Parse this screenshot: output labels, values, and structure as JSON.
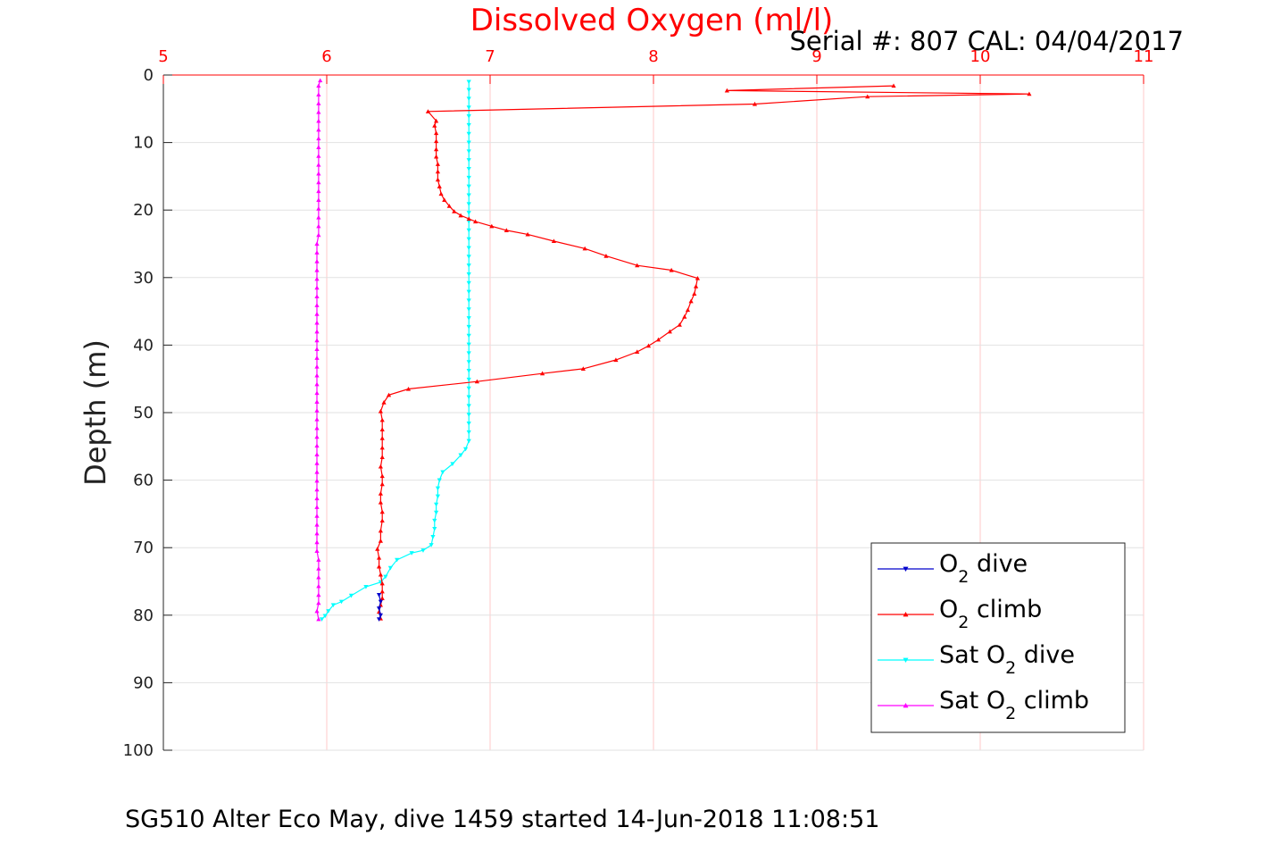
{
  "chart_data": {
    "type": "line",
    "title": "Dissolved Oxygen (ml/l)",
    "subtitle": "Serial #: 807  CAL: 04/04/2017",
    "footer": "SG510 Alter Eco May, dive 1459 started 14-Jun-2018 11:08:51",
    "ylabel": "Depth (m)",
    "xlabel": "",
    "xlim": [
      5,
      11
    ],
    "ylim": [
      0,
      100
    ],
    "y_reversed": true,
    "x_axis_position": "top",
    "xticks": [
      5,
      6,
      7,
      8,
      9,
      10,
      11
    ],
    "yticks": [
      0,
      10,
      20,
      30,
      40,
      50,
      60,
      70,
      80,
      90,
      100
    ],
    "grid": true,
    "legend_position": "lower-right",
    "series": [
      {
        "name": "O2 dive",
        "legend_main": "O",
        "legend_sub": "2",
        "legend_tail": " dive",
        "color": "#0000cc",
        "marker": "triangle-down",
        "points": [
          [
            6.32,
            77.0
          ],
          [
            6.33,
            78.0
          ],
          [
            6.32,
            79.0
          ],
          [
            6.33,
            80.0
          ],
          [
            6.32,
            80.6
          ]
        ]
      },
      {
        "name": "O2 climb",
        "legend_main": "O",
        "legend_sub": "2",
        "legend_tail": " climb",
        "color": "#ff0000",
        "marker": "triangle-up",
        "points": [
          [
            6.33,
            80.5
          ],
          [
            6.32,
            79.5
          ],
          [
            6.33,
            78.5
          ],
          [
            6.34,
            77.5
          ],
          [
            6.34,
            76.5
          ],
          [
            6.34,
            75.3
          ],
          [
            6.33,
            74.0
          ],
          [
            6.32,
            72.8
          ],
          [
            6.32,
            71.5
          ],
          [
            6.31,
            70.2
          ],
          [
            6.33,
            69.0
          ],
          [
            6.33,
            67.5
          ],
          [
            6.34,
            66.0
          ],
          [
            6.34,
            64.7
          ],
          [
            6.33,
            63.3
          ],
          [
            6.33,
            62.0
          ],
          [
            6.34,
            60.6
          ],
          [
            6.34,
            59.4
          ],
          [
            6.33,
            58.0
          ],
          [
            6.34,
            56.6
          ],
          [
            6.34,
            55.2
          ],
          [
            6.34,
            53.8
          ],
          [
            6.34,
            52.5
          ],
          [
            6.34,
            51.1
          ],
          [
            6.33,
            49.8
          ],
          [
            6.35,
            48.5
          ],
          [
            6.38,
            47.4
          ],
          [
            6.5,
            46.5
          ],
          [
            6.92,
            45.4
          ],
          [
            7.32,
            44.2
          ],
          [
            7.57,
            43.5
          ],
          [
            7.77,
            42.2
          ],
          [
            7.9,
            41.0
          ],
          [
            7.97,
            40.1
          ],
          [
            8.03,
            39.2
          ],
          [
            8.1,
            38.0
          ],
          [
            8.16,
            37.0
          ],
          [
            8.19,
            35.8
          ],
          [
            8.21,
            34.8
          ],
          [
            8.23,
            33.5
          ],
          [
            8.25,
            32.4
          ],
          [
            8.26,
            31.3
          ],
          [
            8.27,
            30.1
          ],
          [
            8.11,
            28.9
          ],
          [
            7.9,
            28.2
          ],
          [
            7.71,
            26.8
          ],
          [
            7.58,
            25.7
          ],
          [
            7.39,
            24.6
          ],
          [
            7.23,
            23.6
          ],
          [
            7.1,
            23.0
          ],
          [
            7.01,
            22.4
          ],
          [
            6.91,
            21.7
          ],
          [
            6.87,
            21.3
          ],
          [
            6.82,
            20.8
          ],
          [
            6.78,
            20.2
          ],
          [
            6.75,
            19.4
          ],
          [
            6.72,
            18.5
          ],
          [
            6.7,
            17.6
          ],
          [
            6.69,
            16.5
          ],
          [
            6.68,
            15.5
          ],
          [
            6.68,
            14.3
          ],
          [
            6.68,
            13.2
          ],
          [
            6.67,
            12.1
          ],
          [
            6.67,
            11.0
          ],
          [
            6.67,
            9.8
          ],
          [
            6.67,
            8.6
          ],
          [
            6.66,
            7.5
          ],
          [
            6.67,
            6.8
          ],
          [
            6.62,
            5.4
          ],
          [
            8.62,
            4.3
          ],
          [
            9.31,
            3.2
          ],
          [
            10.3,
            2.8
          ],
          [
            8.45,
            2.3
          ],
          [
            9.47,
            1.6
          ]
        ]
      },
      {
        "name": "Sat O2 dive",
        "legend_main": "Sat O",
        "legend_sub": "2",
        "legend_tail": " dive",
        "color": "#00ffff",
        "marker": "triangle-down",
        "points": [
          [
            6.87,
            1.0
          ],
          [
            6.87,
            2.2
          ],
          [
            6.87,
            3.5
          ],
          [
            6.87,
            4.8
          ],
          [
            6.87,
            6.1
          ],
          [
            6.87,
            7.4
          ],
          [
            6.87,
            8.7
          ],
          [
            6.87,
            10.0
          ],
          [
            6.87,
            11.3
          ],
          [
            6.87,
            12.6
          ],
          [
            6.87,
            13.9
          ],
          [
            6.87,
            15.2
          ],
          [
            6.87,
            16.5
          ],
          [
            6.87,
            17.8
          ],
          [
            6.87,
            19.1
          ],
          [
            6.87,
            20.4
          ],
          [
            6.87,
            21.7
          ],
          [
            6.87,
            23.0
          ],
          [
            6.87,
            24.3
          ],
          [
            6.87,
            25.6
          ],
          [
            6.87,
            26.9
          ],
          [
            6.87,
            28.2
          ],
          [
            6.87,
            29.5
          ],
          [
            6.87,
            30.8
          ],
          [
            6.87,
            32.1
          ],
          [
            6.87,
            33.4
          ],
          [
            6.87,
            34.7
          ],
          [
            6.87,
            36.0
          ],
          [
            6.87,
            37.3
          ],
          [
            6.87,
            38.6
          ],
          [
            6.87,
            39.9
          ],
          [
            6.87,
            41.2
          ],
          [
            6.87,
            42.5
          ],
          [
            6.87,
            43.8
          ],
          [
            6.87,
            45.1
          ],
          [
            6.87,
            46.4
          ],
          [
            6.87,
            47.7
          ],
          [
            6.87,
            49.0
          ],
          [
            6.87,
            50.3
          ],
          [
            6.87,
            51.6
          ],
          [
            6.87,
            52.9
          ],
          [
            6.87,
            54.2
          ],
          [
            6.85,
            55.4
          ],
          [
            6.82,
            56.3
          ],
          [
            6.77,
            57.6
          ],
          [
            6.71,
            58.8
          ],
          [
            6.69,
            60.0
          ],
          [
            6.68,
            61.2
          ],
          [
            6.68,
            62.4
          ],
          [
            6.67,
            63.6
          ],
          [
            6.67,
            64.8
          ],
          [
            6.66,
            66.0
          ],
          [
            6.66,
            67.2
          ],
          [
            6.65,
            68.4
          ],
          [
            6.64,
            69.6
          ],
          [
            6.59,
            70.4
          ],
          [
            6.52,
            70.8
          ],
          [
            6.43,
            71.8
          ],
          [
            6.39,
            73.0
          ],
          [
            6.36,
            74.3
          ],
          [
            6.33,
            75.1
          ],
          [
            6.24,
            75.8
          ],
          [
            6.15,
            77.1
          ],
          [
            6.09,
            78.0
          ],
          [
            6.04,
            78.5
          ],
          [
            6.01,
            79.4
          ],
          [
            5.99,
            80.1
          ],
          [
            5.97,
            80.6
          ]
        ]
      },
      {
        "name": "Sat O2 climb",
        "legend_main": "Sat O",
        "legend_sub": "2",
        "legend_tail": " climb",
        "color": "#ff00ff",
        "marker": "triangle-up",
        "points": [
          [
            5.95,
            80.6
          ],
          [
            5.94,
            79.4
          ],
          [
            5.95,
            78.2
          ],
          [
            5.95,
            77.0
          ],
          [
            5.95,
            75.7
          ],
          [
            5.95,
            74.4
          ],
          [
            5.95,
            73.1
          ],
          [
            5.95,
            71.8
          ],
          [
            5.94,
            70.5
          ],
          [
            5.94,
            69.2
          ],
          [
            5.94,
            67.9
          ],
          [
            5.94,
            66.6
          ],
          [
            5.94,
            65.3
          ],
          [
            5.94,
            64.0
          ],
          [
            5.94,
            62.7
          ],
          [
            5.94,
            61.4
          ],
          [
            5.94,
            60.1
          ],
          [
            5.94,
            58.8
          ],
          [
            5.94,
            57.5
          ],
          [
            5.94,
            56.2
          ],
          [
            5.94,
            54.9
          ],
          [
            5.94,
            53.6
          ],
          [
            5.94,
            52.3
          ],
          [
            5.94,
            51.0
          ],
          [
            5.94,
            49.7
          ],
          [
            5.94,
            48.4
          ],
          [
            5.94,
            47.1
          ],
          [
            5.94,
            45.8
          ],
          [
            5.94,
            44.5
          ],
          [
            5.94,
            43.2
          ],
          [
            5.94,
            41.9
          ],
          [
            5.94,
            40.6
          ],
          [
            5.94,
            39.3
          ],
          [
            5.94,
            38.0
          ],
          [
            5.94,
            36.7
          ],
          [
            5.94,
            35.4
          ],
          [
            5.94,
            34.1
          ],
          [
            5.94,
            32.8
          ],
          [
            5.94,
            31.5
          ],
          [
            5.94,
            30.2
          ],
          [
            5.94,
            28.9
          ],
          [
            5.94,
            27.6
          ],
          [
            5.94,
            26.3
          ],
          [
            5.94,
            25.0
          ],
          [
            5.95,
            23.7
          ],
          [
            5.95,
            22.4
          ],
          [
            5.95,
            21.1
          ],
          [
            5.95,
            19.8
          ],
          [
            5.95,
            18.5
          ],
          [
            5.95,
            17.2
          ],
          [
            5.95,
            15.9
          ],
          [
            5.95,
            14.6
          ],
          [
            5.95,
            13.3
          ],
          [
            5.95,
            12.0
          ],
          [
            5.95,
            10.7
          ],
          [
            5.95,
            9.4
          ],
          [
            5.95,
            8.1
          ],
          [
            5.95,
            6.8
          ],
          [
            5.95,
            5.5
          ],
          [
            5.95,
            4.2
          ],
          [
            5.95,
            2.9
          ],
          [
            5.95,
            1.6
          ],
          [
            5.96,
            0.8
          ]
        ]
      }
    ]
  }
}
